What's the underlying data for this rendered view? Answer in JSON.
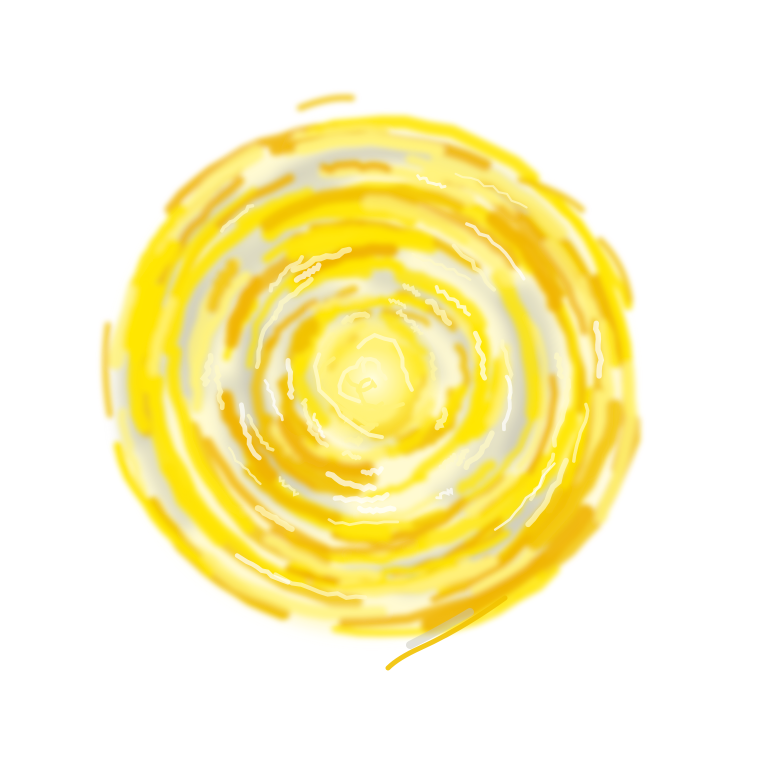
{
  "image": {
    "subject": "swirl-orb",
    "background_color": "#ffffff",
    "palette": {
      "bright_yellow": "#ffe600",
      "gold": "#f2c200",
      "pale_yellow": "#fff27a",
      "cream": "#fff9c4",
      "haze_gray": "#c8c6b8",
      "orange_gold": "#f0b400"
    }
  }
}
